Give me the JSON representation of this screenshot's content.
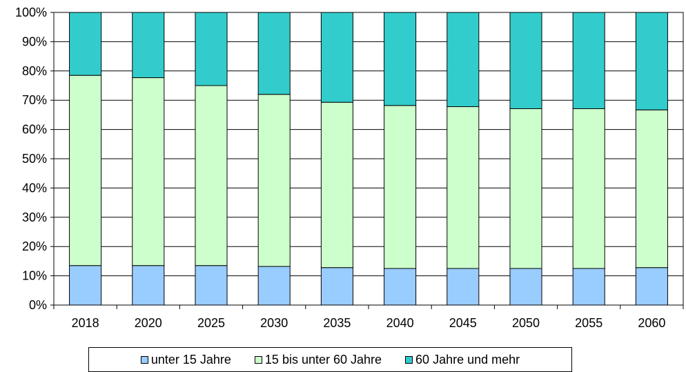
{
  "chart_data": {
    "type": "bar",
    "stacked": true,
    "normalized": true,
    "categories": [
      "2018",
      "2020",
      "2025",
      "2030",
      "2035",
      "2040",
      "2045",
      "2050",
      "2055",
      "2060"
    ],
    "series": [
      {
        "name": "unter 15 Jahre",
        "color": "#99ccff",
        "values": [
          13.5,
          13.5,
          13.5,
          13.2,
          12.8,
          12.5,
          12.5,
          12.5,
          12.5,
          12.8
        ]
      },
      {
        "name": "15 bis unter 60 Jahre",
        "color": "#ccffcc",
        "values": [
          65.0,
          64.2,
          61.5,
          58.8,
          56.5,
          55.7,
          55.3,
          54.6,
          54.6,
          53.9
        ]
      },
      {
        "name": "60 Jahre und mehr",
        "color": "#33cccc",
        "values": [
          21.5,
          22.3,
          25.0,
          28.0,
          30.7,
          31.8,
          32.2,
          32.9,
          32.9,
          33.3
        ]
      }
    ],
    "y_ticks": [
      "0%",
      "10%",
      "20%",
      "30%",
      "40%",
      "50%",
      "60%",
      "70%",
      "80%",
      "90%",
      "100%"
    ],
    "ylim": [
      0,
      100
    ],
    "grid": true,
    "legend_position": "bottom",
    "title": "",
    "xlabel": "",
    "ylabel": ""
  }
}
